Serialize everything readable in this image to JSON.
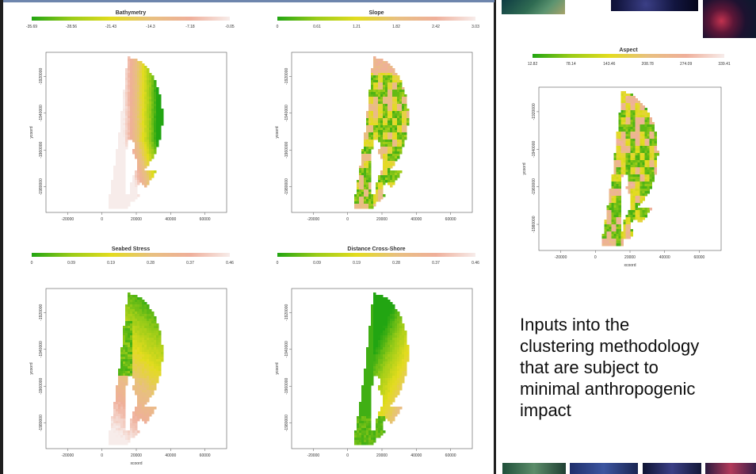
{
  "slide": {
    "caption_lines": [
      "Inputs into the",
      "clustering methodology",
      "that are subject to",
      "minimal anthropogenic",
      "impact"
    ]
  },
  "colors": {
    "ramp": [
      "#22a512",
      "#9bcc18",
      "#e3dc1e",
      "#e8c07f",
      "#efaf9a",
      "#f7ecea"
    ],
    "frame": "#1f1f1f",
    "accent_line": "#6e86ad"
  },
  "maps": [
    {
      "title": "Bathymetry",
      "legend_ticks": [
        "-35.69",
        "-28.56",
        "-21.43",
        "-14.3",
        "-7.18",
        "-0.05"
      ],
      "ylabel": "ycoord",
      "y_ticks": [
        "-1920000",
        "-1940000",
        "-1960000",
        "-1980000"
      ],
      "x_ticks": [
        "-20000",
        "0",
        "20000",
        "40000",
        "60000"
      ],
      "pattern": "bathymetry"
    },
    {
      "title": "Slope",
      "legend_ticks": [
        "0",
        "0.61",
        "1.21",
        "1.82",
        "2.42",
        "3.03"
      ],
      "ylabel": "ycoord",
      "y_ticks": [
        "-1920000",
        "-1940000",
        "-1960000",
        "-1980000"
      ],
      "x_ticks": [
        "-20000",
        "0",
        "20000",
        "40000",
        "60000"
      ],
      "pattern": "slope"
    },
    {
      "title": "Aspect",
      "legend_ticks": [
        "12.82",
        "78.14",
        "143.46",
        "208.78",
        "274.09",
        "339.41"
      ],
      "ylabel": "ycoord",
      "y_ticks": [
        "-1920000",
        "-1940000",
        "-1960000",
        "-1980000"
      ],
      "x_ticks": [
        "-20000",
        "0",
        "20000",
        "40000",
        "60000"
      ],
      "xlabel": "xcoord",
      "pattern": "aspect"
    },
    {
      "title": "Seabed Stress",
      "legend_ticks": [
        "0",
        "0.09",
        "0.19",
        "0.28",
        "0.37",
        "0.46"
      ],
      "ylabel": "ycoord",
      "y_ticks": [
        "-1920000",
        "-1940000",
        "-1960000",
        "-1980000"
      ],
      "x_ticks": [
        "-20000",
        "0",
        "20000",
        "40000",
        "60000"
      ],
      "xlabel": "xcoord",
      "pattern": "stress"
    },
    {
      "title": "Distance Cross-Shore",
      "legend_ticks": [
        "0",
        "0.09",
        "0.19",
        "0.28",
        "0.37",
        "0.46"
      ],
      "ylabel": "ycoord",
      "y_ticks": [
        "-1920000",
        "-1940000",
        "-1960000",
        "-1980000"
      ],
      "x_ticks": [
        "-20000",
        "0",
        "20000",
        "40000",
        "60000"
      ],
      "pattern": "distance"
    }
  ]
}
